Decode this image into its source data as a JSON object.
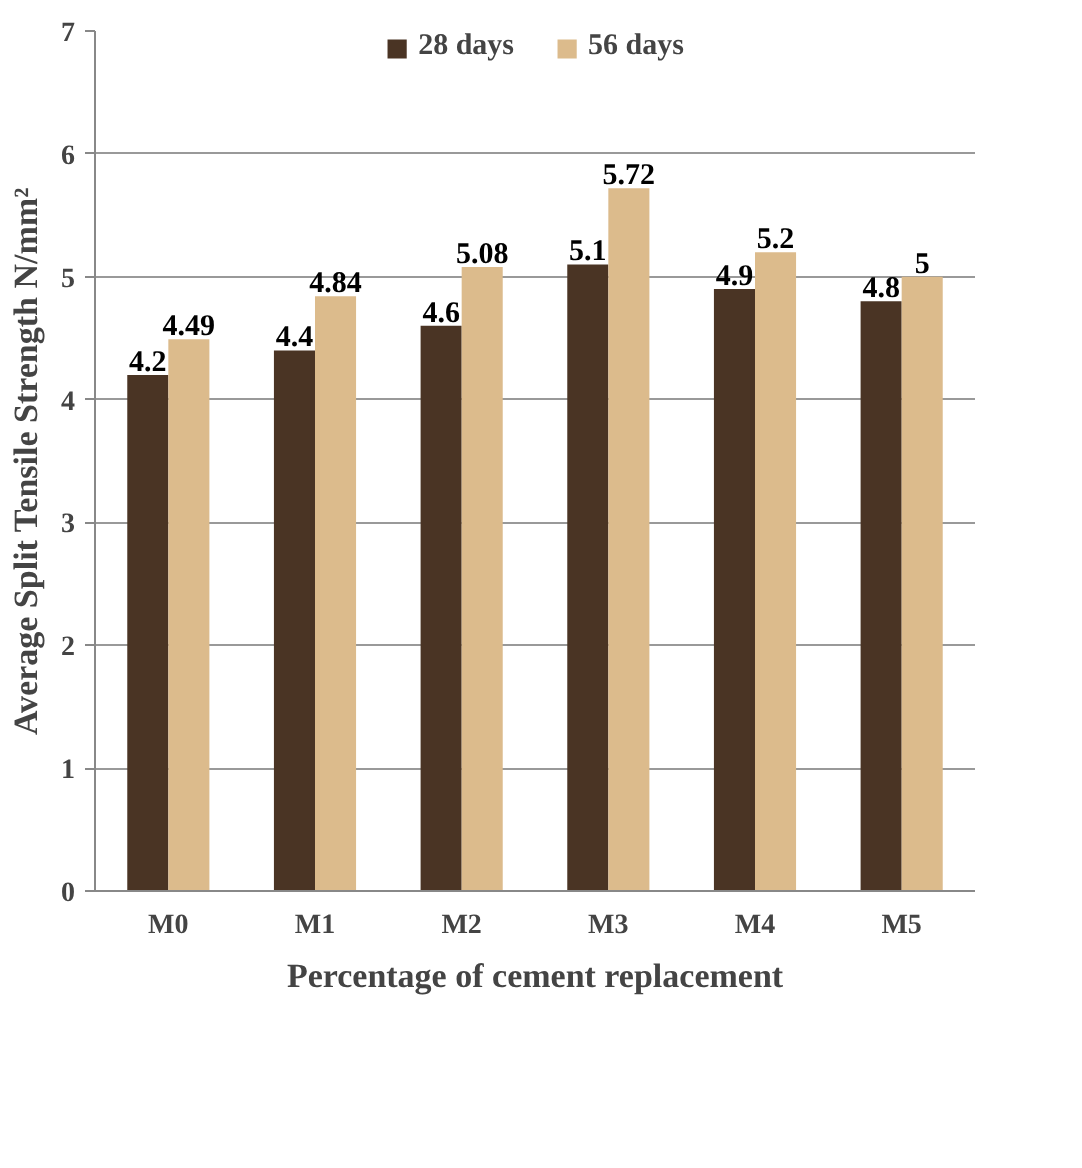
{
  "chart_data": {
    "type": "bar",
    "xlabel": "Percentage of cement replacement",
    "ylabel": "Average Split Tensile Strength N/mm²",
    "categories": [
      "M0",
      "M1",
      "M2",
      "M3",
      "M4",
      "M5"
    ],
    "series": [
      {
        "name": "28 days",
        "color": "#4a3424",
        "values": [
          4.2,
          4.4,
          4.6,
          5.1,
          4.9,
          4.8
        ]
      },
      {
        "name": "56 days",
        "color": "#dcbb8c",
        "values": [
          4.49,
          4.84,
          5.08,
          5.72,
          5.2,
          5
        ]
      }
    ],
    "ylim": [
      0,
      7
    ],
    "yticks": [
      0,
      1,
      2,
      3,
      4,
      5,
      6,
      7
    ],
    "grid": "y",
    "legend": "top",
    "data_labels": true
  }
}
